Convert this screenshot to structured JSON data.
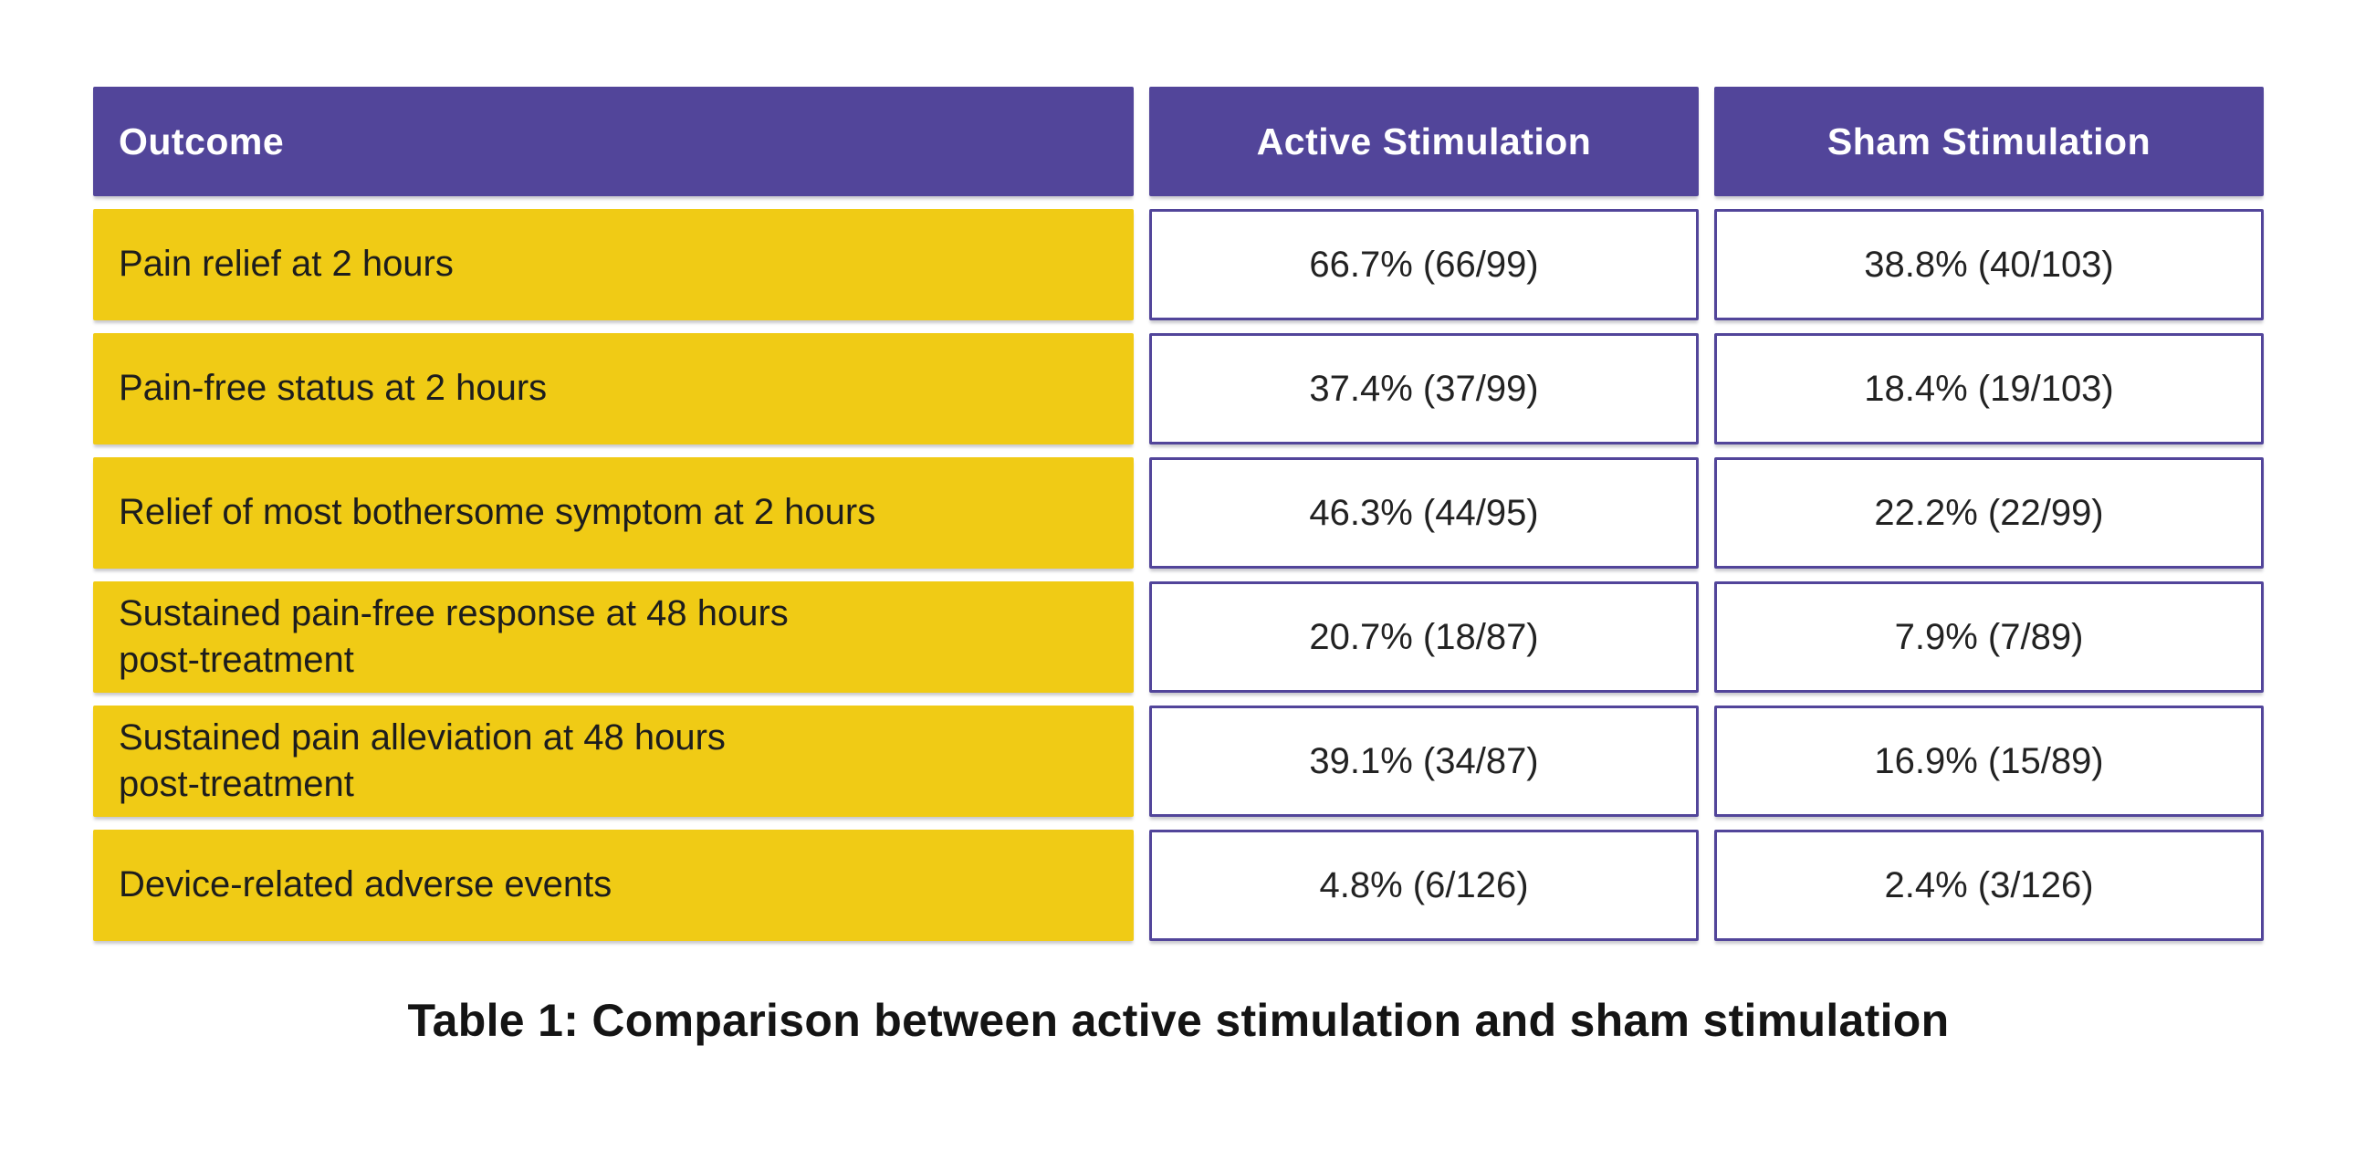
{
  "chart_data": {
    "type": "table",
    "title": "Table 1: Comparison between active stimulation and sham stimulation",
    "columns": [
      "Outcome",
      "Active Stimulation",
      "Sham Stimulation"
    ],
    "rows": [
      {
        "outcome": "Pain relief at 2 hours",
        "active": "66.7% (66/99)",
        "sham": "38.8% (40/103)"
      },
      {
        "outcome": "Pain-free status at 2 hours",
        "active": "37.4% (37/99)",
        "sham": "18.4% (19/103)"
      },
      {
        "outcome": "Relief of most bothersome symptom at 2 hours",
        "active": "46.3% (44/95)",
        "sham": "22.2% (22/99)"
      },
      {
        "outcome": "Sustained pain-free response at 48 hours\npost-treatment",
        "active": "20.7% (18/87)",
        "sham": "7.9% (7/89)"
      },
      {
        "outcome": "Sustained pain alleviation at 48 hours\npost-treatment",
        "active": "39.1% (34/87)",
        "sham": "16.9% (15/89)"
      },
      {
        "outcome": "Device-related adverse events",
        "active": "4.8% (6/126)",
        "sham": "2.4% (3/126)"
      }
    ],
    "caption": "Table 1: Comparison between active stimulation and sham stimulation",
    "legend_position": "none",
    "grid": false
  },
  "colors": {
    "header_background": "#52459A",
    "header_text": "#FFFFFF",
    "outcome_row_background": "#F0CB15",
    "value_cell_border": "#52459A",
    "value_cell_background": "#FFFFFF",
    "body_text": "#1D1D1D",
    "page_background": "#FFFFFF"
  }
}
